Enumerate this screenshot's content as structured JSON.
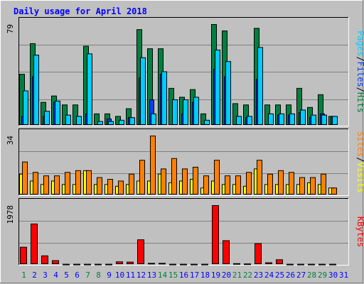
{
  "title": "Daily usage for April 2018",
  "colors": {
    "background": "#C0C0C0",
    "title": "#0000FF",
    "pages": "#00CCFF",
    "files": "#0040FF",
    "hits": "#008040",
    "sites": "#FF8000",
    "visits": "#FFFF00",
    "kbytes": "#FF0000",
    "weekend_label": "#008040",
    "weekday_label": "#0000FF",
    "grid": "#808080"
  },
  "chart_data": [
    {
      "type": "bar",
      "panel": "hits-files-pages",
      "ymax_label": "79",
      "ylim": [
        0,
        79
      ],
      "side_labels": [
        {
          "text": "Pages",
          "color_key": "pages"
        },
        {
          "text": "/",
          "color_key": "sep"
        },
        {
          "text": "Files",
          "color_key": "files"
        },
        {
          "text": "/",
          "color_key": "sep"
        },
        {
          "text": "Hits",
          "color_key": "hits"
        }
      ],
      "categories": [
        "1",
        "2",
        "3",
        "4",
        "5",
        "6",
        "7",
        "8",
        "9",
        "10",
        "11",
        "12",
        "13",
        "14",
        "15",
        "16",
        "17",
        "18",
        "19",
        "20",
        "21",
        "22",
        "23",
        "24",
        "25",
        "26",
        "27",
        "28",
        "29",
        "30",
        "31"
      ],
      "series": [
        {
          "name": "Hits",
          "color_key": "hits",
          "values": [
            40,
            64,
            18,
            23,
            16,
            16,
            62,
            9,
            9,
            7,
            13,
            75,
            60,
            60,
            29,
            22,
            28,
            9,
            79,
            74,
            17,
            16,
            76,
            16,
            16,
            16,
            29,
            14,
            24,
            7,
            0
          ]
        },
        {
          "name": "Files",
          "color_key": "files",
          "values": [
            7,
            38,
            7,
            18,
            0,
            0,
            9,
            0,
            5,
            0,
            6,
            37,
            20,
            40,
            0,
            9,
            18,
            0,
            44,
            38,
            0,
            6,
            36,
            0,
            8,
            8,
            10,
            6,
            9,
            7,
            0
          ]
        },
        {
          "name": "Pages",
          "color_key": "pages",
          "values": [
            27,
            55,
            11,
            19,
            8,
            7,
            56,
            3,
            3,
            4,
            6,
            53,
            9,
            42,
            20,
            20,
            22,
            4,
            59,
            50,
            7,
            7,
            61,
            9,
            9,
            9,
            12,
            8,
            8,
            7,
            0
          ]
        }
      ]
    },
    {
      "type": "bar",
      "panel": "visits-sites",
      "ymax_label": "34",
      "ylim": [
        0,
        34
      ],
      "side_labels": [
        {
          "text": "Sites",
          "color_key": "sites"
        },
        {
          "text": "/",
          "color_key": "sep"
        },
        {
          "text": "Visits",
          "color_key": "visits"
        }
      ],
      "categories": [
        "1",
        "2",
        "3",
        "4",
        "5",
        "6",
        "7",
        "8",
        "9",
        "10",
        "11",
        "12",
        "13",
        "14",
        "15",
        "16",
        "17",
        "18",
        "19",
        "20",
        "21",
        "22",
        "23",
        "24",
        "25",
        "26",
        "27",
        "28",
        "29",
        "30",
        "31"
      ],
      "series": [
        {
          "name": "Visits",
          "color_key": "visits",
          "values": [
            12,
            8,
            6,
            8,
            6,
            6,
            14,
            6,
            6,
            5,
            6,
            8,
            8,
            12,
            7,
            8,
            9,
            4,
            8,
            6,
            6,
            5,
            15,
            6,
            6,
            6,
            6,
            7,
            6,
            4,
            0
          ]
        },
        {
          "name": "Sites",
          "color_key": "sites",
          "values": [
            19,
            13,
            11,
            11,
            13,
            14,
            14,
            10,
            9,
            8,
            12,
            20,
            34,
            15,
            21,
            15,
            16,
            11,
            20,
            11,
            11,
            13,
            20,
            12,
            14,
            13,
            10,
            10,
            12,
            4,
            0
          ]
        }
      ]
    },
    {
      "type": "bar",
      "panel": "kbytes",
      "ymax_label": "1978",
      "ylim": [
        0,
        1978
      ],
      "side_labels": [
        {
          "text": "KBytes",
          "color_key": "kbytes"
        }
      ],
      "categories": [
        "1",
        "2",
        "3",
        "4",
        "5",
        "6",
        "7",
        "8",
        "9",
        "10",
        "11",
        "12",
        "13",
        "14",
        "15",
        "16",
        "17",
        "18",
        "19",
        "20",
        "21",
        "22",
        "23",
        "24",
        "25",
        "26",
        "27",
        "28",
        "29",
        "30",
        "31"
      ],
      "series": [
        {
          "name": "KBytes",
          "color_key": "kbytes",
          "values": [
            580,
            1360,
            290,
            130,
            10,
            10,
            10,
            10,
            10,
            90,
            80,
            830,
            40,
            40,
            10,
            10,
            10,
            10,
            1978,
            800,
            30,
            20,
            700,
            60,
            160,
            10,
            10,
            10,
            10,
            10,
            0
          ]
        }
      ]
    }
  ],
  "weekend_days": [
    1,
    7,
    8,
    14,
    15,
    21,
    22,
    28,
    29
  ]
}
